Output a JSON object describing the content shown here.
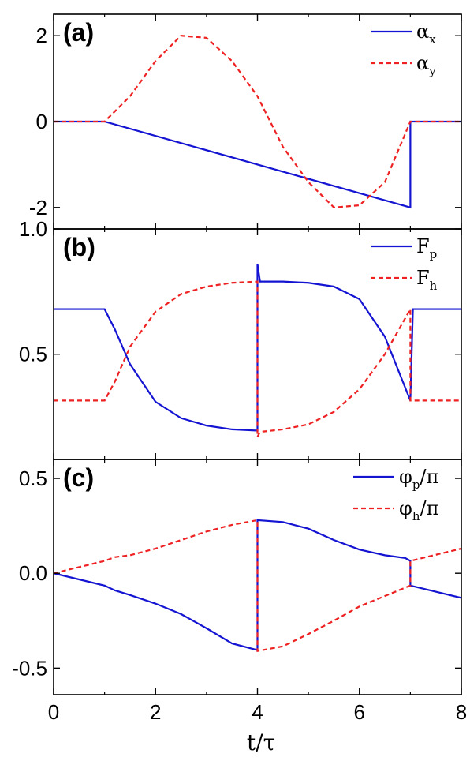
{
  "chart_data": [
    {
      "type": "line",
      "panel_label": "(a)",
      "xlim": [
        0,
        8
      ],
      "ylim": [
        -2.5,
        2.5
      ],
      "yticks": [
        -2,
        0,
        2
      ],
      "ytick_labels": [
        "-2",
        "0",
        "2"
      ],
      "legend_placement": "top-right",
      "series": [
        {
          "name": "αx",
          "name_main": "α",
          "name_sub": "x",
          "color": "#1414d2",
          "dash": "solid",
          "points": [
            [
              0,
              0
            ],
            [
              1,
              0
            ],
            [
              7,
              -2
            ],
            [
              7,
              0
            ],
            [
              8,
              0
            ]
          ]
        },
        {
          "name": "αy",
          "name_main": "α",
          "name_sub": "y",
          "color": "#ee2222",
          "dash": "dashed",
          "points": [
            [
              0,
              0
            ],
            [
              1,
              0
            ],
            [
              1.5,
              0.59
            ],
            [
              2,
              1.41
            ],
            [
              2.5,
              2
            ],
            [
              3,
              1.95
            ],
            [
              3.5,
              1.41
            ],
            [
              4,
              0.59
            ],
            [
              4.5,
              -0.59
            ],
            [
              5,
              -1.41
            ],
            [
              5.5,
              -2
            ],
            [
              6,
              -1.95
            ],
            [
              6.5,
              -1.41
            ],
            [
              7,
              0
            ],
            [
              8,
              0
            ]
          ]
        }
      ]
    },
    {
      "type": "line",
      "panel_label": "(b)",
      "xlim": [
        0,
        8
      ],
      "ylim": [
        0.08,
        1.0
      ],
      "yticks": [
        0.5,
        1.0
      ],
      "ytick_labels": [
        "0.5",
        "1.0"
      ],
      "legend_placement": "top-right",
      "series": [
        {
          "name": "Fp",
          "name_main": "F",
          "name_sub": "p",
          "color": "#1414d2",
          "dash": "solid",
          "points": [
            [
              0,
              0.68
            ],
            [
              1,
              0.68
            ],
            [
              1.2,
              0.6
            ],
            [
              1.5,
              0.46
            ],
            [
              2,
              0.31
            ],
            [
              2.5,
              0.245
            ],
            [
              3,
              0.215
            ],
            [
              3.5,
              0.2
            ],
            [
              4,
              0.195
            ],
            [
              4,
              0.86
            ],
            [
              4.05,
              0.79
            ],
            [
              4.5,
              0.79
            ],
            [
              5,
              0.785
            ],
            [
              5.5,
              0.77
            ],
            [
              6,
              0.72
            ],
            [
              6.5,
              0.57
            ],
            [
              7,
              0.315
            ],
            [
              7.05,
              0.68
            ],
            [
              8,
              0.68
            ]
          ]
        },
        {
          "name": "Fh",
          "name_main": "F",
          "name_sub": "h",
          "color": "#ee2222",
          "dash": "dashed",
          "points": [
            [
              0,
              0.315
            ],
            [
              1,
              0.315
            ],
            [
              1.2,
              0.39
            ],
            [
              1.5,
              0.53
            ],
            [
              2,
              0.67
            ],
            [
              2.5,
              0.74
            ],
            [
              3,
              0.77
            ],
            [
              3.5,
              0.785
            ],
            [
              4,
              0.79
            ],
            [
              4,
              0.17
            ],
            [
              4.05,
              0.19
            ],
            [
              4.5,
              0.2
            ],
            [
              5,
              0.22
            ],
            [
              5.5,
              0.27
            ],
            [
              6,
              0.36
            ],
            [
              6.5,
              0.5
            ],
            [
              7,
              0.68
            ],
            [
              7,
              0.315
            ],
            [
              8,
              0.315
            ]
          ]
        }
      ]
    },
    {
      "type": "line",
      "panel_label": "(c)",
      "xlim": [
        0,
        8
      ],
      "ylim": [
        -0.64,
        0.6
      ],
      "yticks": [
        -0.5,
        0.0,
        0.5
      ],
      "ytick_labels": [
        "-0.5",
        "0.0",
        "0.5"
      ],
      "xticks": [
        0,
        2,
        4,
        6,
        8
      ],
      "xtick_labels": [
        "0",
        "2",
        "4",
        "6",
        "8"
      ],
      "xlabel": "t/τ",
      "legend_placement": "top-right",
      "series": [
        {
          "name": "φp/π",
          "name_main": "φ",
          "name_sub": "p",
          "name_tail": "/π",
          "color": "#1414d2",
          "dash": "solid",
          "points": [
            [
              0,
              0
            ],
            [
              1,
              -0.065
            ],
            [
              1.2,
              -0.09
            ],
            [
              1.5,
              -0.115
            ],
            [
              2,
              -0.16
            ],
            [
              2.5,
              -0.215
            ],
            [
              3,
              -0.29
            ],
            [
              3.5,
              -0.37
            ],
            [
              4,
              -0.405
            ],
            [
              4,
              0.28
            ],
            [
              4.5,
              0.27
            ],
            [
              5,
              0.235
            ],
            [
              5.5,
              0.175
            ],
            [
              6,
              0.125
            ],
            [
              6.5,
              0.095
            ],
            [
              6.9,
              0.08
            ],
            [
              7,
              0.065
            ],
            [
              7,
              -0.065
            ],
            [
              8,
              -0.13
            ]
          ]
        },
        {
          "name": "φh/π",
          "name_main": "φ",
          "name_sub": "h",
          "name_tail": "/π",
          "color": "#ee2222",
          "dash": "dashed",
          "points": [
            [
              0,
              0
            ],
            [
              1,
              0.065
            ],
            [
              1.2,
              0.085
            ],
            [
              1.5,
              0.095
            ],
            [
              2,
              0.13
            ],
            [
              2.5,
              0.175
            ],
            [
              3,
              0.22
            ],
            [
              3.5,
              0.255
            ],
            [
              4,
              0.28
            ],
            [
              4,
              -0.41
            ],
            [
              4.5,
              -0.385
            ],
            [
              5,
              -0.32
            ],
            [
              5.5,
              -0.25
            ],
            [
              6,
              -0.175
            ],
            [
              6.5,
              -0.12
            ],
            [
              7,
              -0.065
            ],
            [
              7,
              0.065
            ],
            [
              8,
              0.13
            ]
          ]
        }
      ]
    }
  ]
}
